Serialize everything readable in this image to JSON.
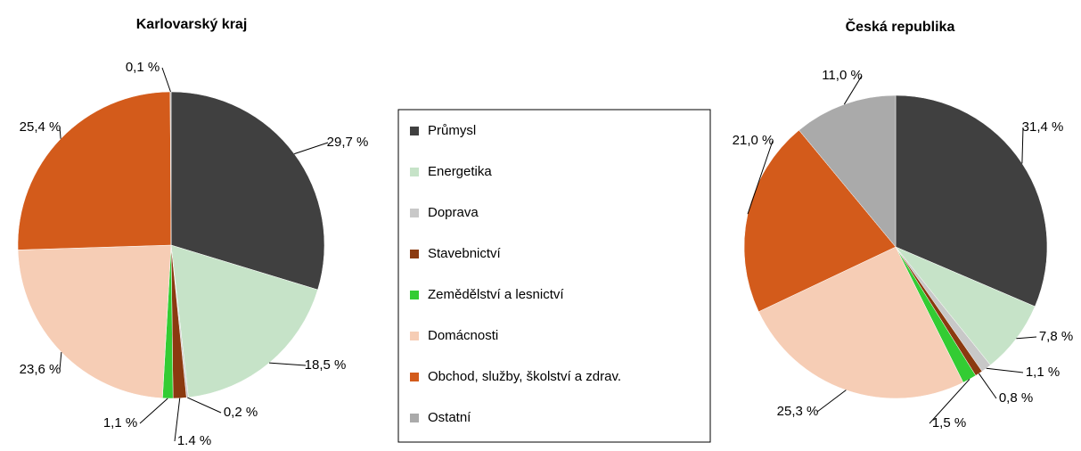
{
  "chart_data": [
    {
      "type": "pie",
      "title": "Karlovarský kraj",
      "categories": [
        "Průmysl",
        "Energetika",
        "Doprava",
        "Stavebnictví",
        "Zemědělství a lesnictví",
        "Domácnosti",
        "Obchod, služby, školství a zdrav.",
        "Ostatní"
      ],
      "colors": [
        "#404040",
        "#c6e3c8",
        "#c8c8c8",
        "#8b3a10",
        "#33cc33",
        "#f6cdb5",
        "#d35b1b",
        "#aaaaaa"
      ],
      "values": [
        29.7,
        18.5,
        0.2,
        1.4,
        1.1,
        23.6,
        25.4,
        0.1
      ],
      "value_labels": [
        "29,7 %",
        "18,5 %",
        "0,2 %",
        "1.4 %",
        "1,1 %",
        "23,6 %",
        "25,4 %",
        "0,1 %"
      ]
    },
    {
      "type": "pie",
      "title": "Česká republika",
      "values": [
        31.4,
        7.8,
        1.1,
        0.8,
        1.5,
        25.3,
        21.0,
        11.0
      ],
      "value_labels": [
        "31,4 %",
        "7,8 %",
        "1,1 %",
        "0,8 %",
        "1,5 %",
        "25,3 %",
        "21,0 %",
        "11,0 %"
      ]
    }
  ]
}
